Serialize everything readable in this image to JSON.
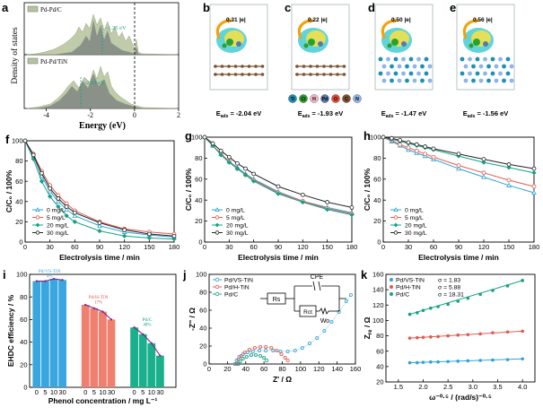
{
  "panel_labels": [
    "a",
    "b",
    "c",
    "d",
    "e",
    "f",
    "g",
    "h",
    "i",
    "j",
    "k"
  ],
  "colors": {
    "blue": "#2fa3d6",
    "red": "#e05a4d",
    "green": "#16a085",
    "black": "#222222",
    "olive": "#b5c39b",
    "dos_gray": "#6d7176",
    "bar_blue": "#3aa6e0",
    "bar_red": "#ef7f6e",
    "bar_green": "#1ab08b"
  },
  "dos": {
    "ylabel": "Density of states",
    "xlabel": "Energy (eV)",
    "xticks": [
      "-4",
      "-2",
      "0",
      "2"
    ],
    "top": {
      "legend": "Pd-Pd/C",
      "annot": "-1.25 eV"
    },
    "bottom": {
      "legend": "Pd-Pd/TiN",
      "annot": "-2.13 eV"
    }
  },
  "structures": [
    {
      "id": "b",
      "charge": "0.31 |e|",
      "energy": "E_ads = -2.04 eV",
      "energy_main": "E",
      "energy_sub": "ads",
      "energy_val": " = -2.04 eV"
    },
    {
      "id": "c",
      "charge": "0.22 |e|",
      "energy_main": "E",
      "energy_sub": "ads",
      "energy_val": " = -1.93 eV"
    },
    {
      "id": "d",
      "charge": "0.50 |e|",
      "energy_main": "E",
      "energy_sub": "ads",
      "energy_val": " = -1.47 eV"
    },
    {
      "id": "e",
      "charge": "0.56 |e|",
      "energy_main": "E",
      "energy_sub": "ads",
      "energy_val": " = -1.56 eV"
    }
  ],
  "element_legend": [
    {
      "symbol": "Ti",
      "color": "#1f8fb5"
    },
    {
      "symbol": "Cl",
      "color": "#2ca02c"
    },
    {
      "symbol": "H",
      "color": "#f2b6c6"
    },
    {
      "symbol": "Pd",
      "color": "#5a78b0"
    },
    {
      "symbol": "O",
      "color": "#e34a33"
    },
    {
      "symbol": "C",
      "color": "#7a5230"
    },
    {
      "symbol": "N",
      "color": "#8fb4e6"
    }
  ],
  "chart_data": [
    {
      "panel": "f",
      "type": "line",
      "xlabel": "Electrolysis time / min",
      "ylabel": "C/C₀ / 100%",
      "xlim": [
        0,
        180
      ],
      "ylim": [
        0,
        100
      ],
      "xticks": [
        0,
        30,
        60,
        90,
        120,
        150,
        180
      ],
      "yticks": [
        0,
        20,
        40,
        60,
        80,
        100
      ],
      "x": [
        0,
        10,
        20,
        30,
        40,
        50,
        60,
        90,
        120,
        150,
        180
      ],
      "series": [
        {
          "name": "0 mg/L",
          "color": "#2fa3d6",
          "marker": "triangle",
          "values": [
            100,
            85,
            65,
            50,
            40,
            32,
            26,
            16,
            10,
            7,
            5
          ]
        },
        {
          "name": "5 mg/L",
          "color": "#e05a4d",
          "marker": "circle",
          "values": [
            100,
            87,
            70,
            56,
            46,
            38,
            31,
            20,
            13,
            10,
            8
          ]
        },
        {
          "name": "20 mg/L",
          "color": "#16a085",
          "marker": "diamond",
          "values": [
            100,
            82,
            60,
            45,
            35,
            26,
            20,
            11,
            6,
            4,
            3
          ]
        },
        {
          "name": "30 mg/L",
          "color": "#222222",
          "marker": "circle-open",
          "values": [
            100,
            86,
            68,
            53,
            43,
            35,
            29,
            19,
            12,
            8,
            6
          ]
        }
      ]
    },
    {
      "panel": "g",
      "type": "line",
      "xlabel": "Electrolysis time / min",
      "ylabel": "C/C₀ / 100%",
      "xlim": [
        0,
        180
      ],
      "ylim": [
        0,
        100
      ],
      "xticks": [
        0,
        30,
        60,
        90,
        120,
        150,
        180
      ],
      "yticks": [
        0,
        20,
        40,
        60,
        80,
        100
      ],
      "x": [
        0,
        10,
        20,
        30,
        40,
        50,
        60,
        90,
        120,
        150,
        180
      ],
      "series": [
        {
          "name": "0 mg/L",
          "color": "#2fa3d6",
          "marker": "triangle",
          "values": [
            100,
            92,
            84,
            77,
            71,
            65,
            60,
            48,
            39,
            33,
            28
          ]
        },
        {
          "name": "5 mg/L",
          "color": "#e05a4d",
          "marker": "circle",
          "values": [
            100,
            92,
            84,
            77,
            70,
            64,
            59,
            47,
            39,
            32,
            27
          ]
        },
        {
          "name": "20 mg/L",
          "color": "#16a085",
          "marker": "diamond",
          "values": [
            100,
            92,
            83,
            76,
            70,
            64,
            58,
            46,
            38,
            31,
            26
          ]
        },
        {
          "name": "30 mg/L",
          "color": "#222222",
          "marker": "circle-open",
          "values": [
            100,
            94,
            87,
            81,
            75,
            70,
            65,
            53,
            45,
            38,
            33
          ]
        }
      ]
    },
    {
      "panel": "h",
      "type": "line",
      "xlabel": "Electrolysis time / min",
      "ylabel": "C/C₀ / 100%",
      "xlim": [
        0,
        180
      ],
      "ylim": [
        0,
        100
      ],
      "xticks": [
        0,
        30,
        60,
        90,
        120,
        150,
        180
      ],
      "yticks": [
        0,
        20,
        40,
        60,
        80,
        100
      ],
      "x": [
        0,
        10,
        20,
        30,
        40,
        50,
        60,
        90,
        120,
        150,
        180
      ],
      "series": [
        {
          "name": "0 mg/L",
          "color": "#2fa3d6",
          "marker": "triangle",
          "values": [
            100,
            96,
            92,
            88,
            85,
            82,
            79,
            70,
            62,
            54,
            47
          ]
        },
        {
          "name": "5 mg/L",
          "color": "#e05a4d",
          "marker": "circle",
          "values": [
            100,
            97,
            93,
            90,
            87,
            84,
            81,
            73,
            66,
            59,
            53
          ]
        },
        {
          "name": "20 mg/L",
          "color": "#16a085",
          "marker": "diamond",
          "values": [
            100,
            98,
            96,
            94,
            92,
            90,
            88,
            82,
            76,
            71,
            66
          ]
        },
        {
          "name": "30 mg/L",
          "color": "#222222",
          "marker": "circle-open",
          "values": [
            100,
            99,
            97,
            95,
            93,
            91,
            89,
            84,
            79,
            74,
            70
          ]
        }
      ]
    },
    {
      "panel": "i",
      "type": "bar",
      "xlabel": "Phenol concentration / mg L⁻¹",
      "ylabel": "EHDC efficiency / %",
      "ylim": [
        0,
        100
      ],
      "yticks": [
        0,
        20,
        40,
        60,
        80,
        100
      ],
      "groups": [
        {
          "name": "Pd/VS-TiN",
          "note": "4%",
          "color": "#3aa6e0",
          "labelColor": "#3aa6e0",
          "categories": [
            "0",
            "5",
            "10",
            "30"
          ],
          "values": [
            94,
            94,
            96,
            95
          ]
        },
        {
          "name": "Pd/H-TiN",
          "note": "17%",
          "color": "#ef7f6e",
          "labelColor": "#e05a4d",
          "categories": [
            "0",
            "5",
            "10",
            "30"
          ],
          "values": [
            73,
            70,
            67,
            60
          ]
        },
        {
          "name": "Pd/C",
          "note": "48%",
          "color": "#1ab08b",
          "labelColor": "#16a085",
          "categories": [
            "0",
            "5",
            "10",
            "30"
          ],
          "values": [
            53,
            47,
            39,
            28
          ]
        }
      ]
    },
    {
      "panel": "j",
      "type": "scatter",
      "xlabel": "Z' / Ω",
      "ylabel": "-Z'' / Ω",
      "xlim": [
        0,
        160
      ],
      "ylim": [
        0,
        100
      ],
      "xticks": [
        0,
        20,
        40,
        60,
        80,
        100,
        120,
        140,
        160
      ],
      "yticks": [
        0,
        20,
        40,
        60,
        80,
        100
      ],
      "circuit": {
        "r1": "Rs",
        "r2": "Rct",
        "cpe": "CPE",
        "w": "Wo"
      },
      "series": [
        {
          "name": "Pd/VS-TiN",
          "color": "#2fa3d6",
          "points": [
            [
              28,
              0
            ],
            [
              30,
              4
            ],
            [
              33,
              8
            ],
            [
              37,
              11
            ],
            [
              42,
              13
            ],
            [
              48,
              14
            ],
            [
              55,
              15
            ],
            [
              62,
              15
            ],
            [
              70,
              15
            ],
            [
              78,
              14
            ],
            [
              86,
              14
            ],
            [
              94,
              15
            ],
            [
              102,
              18
            ],
            [
              110,
              23
            ],
            [
              118,
              29
            ],
            [
              126,
              37
            ],
            [
              134,
              47
            ],
            [
              142,
              58
            ],
            [
              150,
              70
            ],
            [
              155,
              77
            ]
          ]
        },
        {
          "name": "Pd/H-TiN",
          "color": "#e05a4d",
          "points": [
            [
              30,
              0
            ],
            [
              32,
              5
            ],
            [
              35,
              9
            ],
            [
              39,
              13
            ],
            [
              44,
              16
            ],
            [
              50,
              18
            ],
            [
              56,
              19
            ],
            [
              62,
              19
            ],
            [
              68,
              18
            ],
            [
              74,
              15
            ],
            [
              79,
              11
            ],
            [
              83,
              7
            ],
            [
              86,
              4
            ]
          ]
        },
        {
          "name": "Pd/C",
          "color": "#16a085",
          "points": [
            [
              32,
              0
            ],
            [
              34,
              3
            ],
            [
              37,
              6
            ],
            [
              41,
              8
            ],
            [
              46,
              10
            ],
            [
              51,
              10
            ],
            [
              56,
              9
            ],
            [
              60,
              7
            ],
            [
              63,
              4
            ]
          ]
        }
      ]
    },
    {
      "panel": "k",
      "type": "scatter",
      "xlabel": "ω⁻⁰·⁵ / (rad/s)⁻⁰·⁵",
      "ylabel": "Z_re / Ω",
      "xlim": [
        1.25,
        4.25
      ],
      "ylim": [
        20,
        160
      ],
      "xticks": [
        1.5,
        2.0,
        2.5,
        3.0,
        3.5,
        4.0
      ],
      "yticks": [
        20,
        40,
        60,
        80,
        100,
        120,
        140,
        160
      ],
      "series": [
        {
          "name": "Pd/VS-TiN",
          "sigma": "σ = 1.83",
          "color": "#2fa3d6",
          "x": [
            1.73,
            1.88,
            2.0,
            2.15,
            2.3,
            2.5,
            2.7,
            2.9,
            3.15,
            3.4,
            3.7,
            4.0
          ],
          "values": [
            45,
            45,
            45.5,
            46,
            46,
            46.5,
            47,
            47.5,
            48,
            48.5,
            49,
            50
          ]
        },
        {
          "name": "Pd/H-TiN",
          "sigma": "σ = 5.88",
          "color": "#e05a4d",
          "x": [
            1.73,
            1.88,
            2.0,
            2.15,
            2.3,
            2.5,
            2.7,
            2.9,
            3.15,
            3.4,
            3.7,
            4.0
          ],
          "values": [
            77,
            77.5,
            78,
            78.5,
            79,
            80,
            81,
            81.5,
            82.5,
            84,
            85,
            86
          ]
        },
        {
          "name": "Pd/C",
          "sigma": "σ = 18.31",
          "color": "#16a085",
          "x": [
            1.73,
            1.88,
            2.0,
            2.15,
            2.3,
            2.5,
            2.7,
            2.9,
            3.15,
            3.4,
            3.7,
            4.0
          ],
          "values": [
            108,
            110,
            113,
            116,
            118,
            121,
            125,
            129,
            134,
            139,
            145,
            152
          ]
        }
      ]
    }
  ]
}
